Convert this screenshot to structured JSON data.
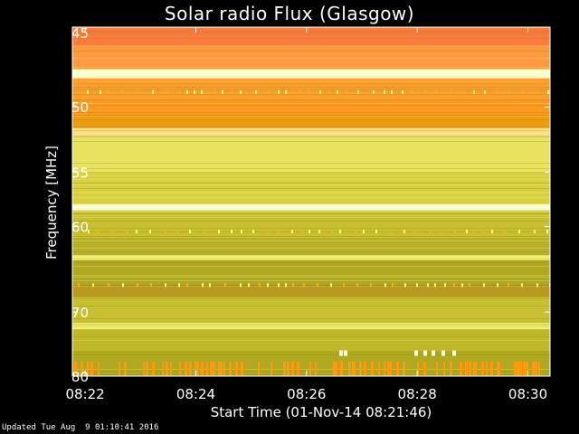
{
  "chart_data": {
    "type": "heatmap",
    "title": "Solar radio Flux (Glasgow)",
    "xlabel": "Start Time (01-Nov-14 08:21:46)",
    "ylabel": "Frequency [MHz]",
    "x_ticks": [
      "08:22",
      "08:24",
      "08:26",
      "08:28",
      "08:30"
    ],
    "x_tick_minutes": [
      22,
      24,
      26,
      28,
      30
    ],
    "xlim_minutes": [
      21.77,
      30.4
    ],
    "y_ticks": [
      45,
      50,
      55,
      60,
      70,
      80
    ],
    "ylim": [
      45,
      80
    ],
    "y_scale": "reciprocal",
    "bands": [
      {
        "from": 45.0,
        "to": 46.0,
        "color": "#ff7a3c"
      },
      {
        "from": 46.0,
        "to": 47.5,
        "color": "#ff9a40"
      },
      {
        "from": 47.5,
        "to": 48.1,
        "color": "#ffffc0"
      },
      {
        "from": 48.1,
        "to": 49.5,
        "color": "#ffa030"
      },
      {
        "from": 49.5,
        "to": 50.6,
        "color": "#ff9a20"
      },
      {
        "from": 50.6,
        "to": 51.5,
        "color": "#f09a10"
      },
      {
        "from": 51.5,
        "to": 52.2,
        "color": "#ffe080"
      },
      {
        "from": 52.2,
        "to": 55.0,
        "color": "#e8e460"
      },
      {
        "from": 55.0,
        "to": 57.8,
        "color": "#d8d040"
      },
      {
        "from": 57.8,
        "to": 58.5,
        "color": "#ffffb0"
      },
      {
        "from": 58.5,
        "to": 61.0,
        "color": "#c8c030"
      },
      {
        "from": 61.0,
        "to": 63.0,
        "color": "#b8b028"
      },
      {
        "from": 63.0,
        "to": 63.6,
        "color": "#f0f070"
      },
      {
        "from": 63.6,
        "to": 66.5,
        "color": "#b0a820"
      },
      {
        "from": 66.5,
        "to": 68.0,
        "color": "#b89a20"
      },
      {
        "from": 68.0,
        "to": 71.5,
        "color": "#c8c030"
      },
      {
        "from": 71.5,
        "to": 72.5,
        "color": "#f0f070"
      },
      {
        "from": 72.5,
        "to": 76.0,
        "color": "#c0b828"
      },
      {
        "from": 76.0,
        "to": 80.0,
        "color": "#b0a820"
      }
    ],
    "burst_color": "#ff9a10"
  },
  "footer": "Updated Tue Aug  9 01:10:41 2016"
}
